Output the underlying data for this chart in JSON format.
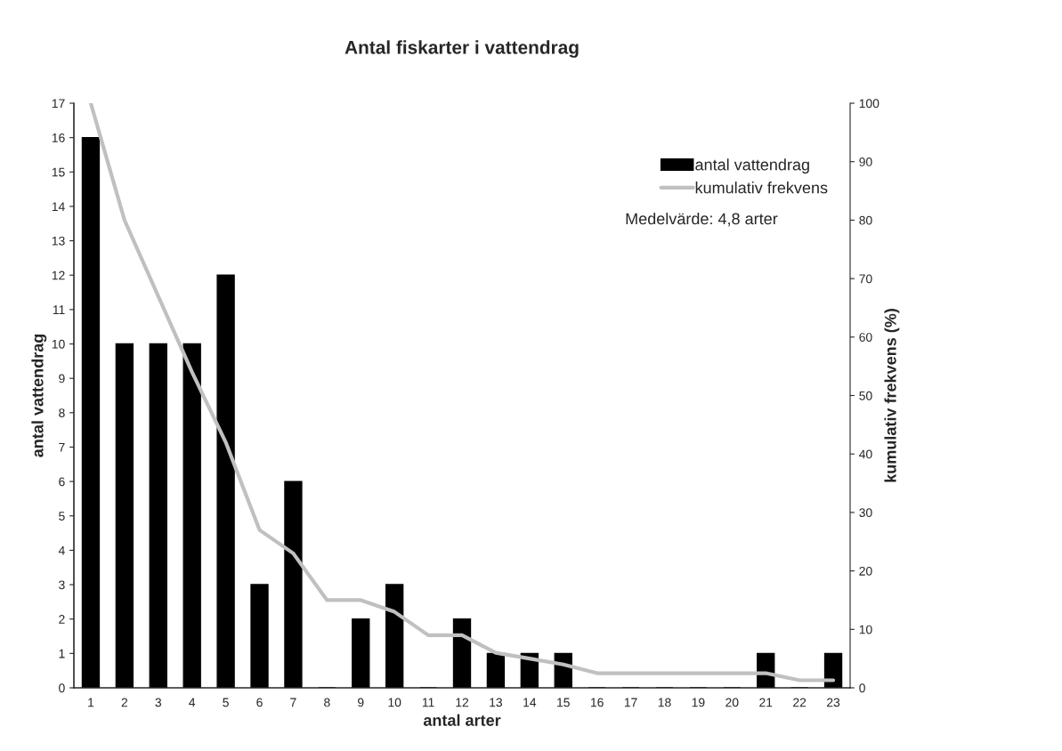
{
  "chart_data": {
    "type": "bar",
    "title": "Antal fiskarter i vattendrag",
    "xlabel": "antal arter",
    "ylabel": "antal vattendrag",
    "y2label": "kumulativ frekvens (%)",
    "categories": [
      "1",
      "2",
      "3",
      "4",
      "5",
      "6",
      "7",
      "8",
      "9",
      "10",
      "11",
      "12",
      "13",
      "14",
      "15",
      "16",
      "17",
      "18",
      "19",
      "20",
      "21",
      "22",
      "23"
    ],
    "series": [
      {
        "name": "antal vattendrag",
        "color": "#000000",
        "values": [
          16,
          10,
          10,
          10,
          12,
          3,
          6,
          0,
          2,
          3,
          0,
          2,
          1,
          1,
          1,
          0,
          0,
          0,
          0,
          0,
          1,
          0,
          1
        ]
      },
      {
        "name": "kumulativ frekvens",
        "type": "line",
        "axis": "y2",
        "color": "#c0c0c0",
        "values": [
          100,
          80,
          67,
          54,
          42,
          27,
          23,
          15,
          15,
          13,
          9,
          9,
          6,
          5,
          4,
          2.5,
          2.5,
          2.5,
          2.5,
          2.5,
          2.5,
          1.3,
          1.3
        ]
      }
    ],
    "ylim": [
      0,
      17
    ],
    "yticks": [
      0,
      1,
      2,
      3,
      4,
      5,
      6,
      7,
      8,
      9,
      10,
      11,
      12,
      13,
      14,
      15,
      16,
      17
    ],
    "y2lim": [
      0,
      100
    ],
    "y2ticks": [
      0,
      10,
      20,
      30,
      40,
      50,
      60,
      70,
      80,
      90,
      100
    ],
    "annotations": [
      "Medelvärde: 4,8 arter"
    ],
    "legend": "top right",
    "grid": false,
    "marker": "none",
    "line_style": "solid"
  }
}
